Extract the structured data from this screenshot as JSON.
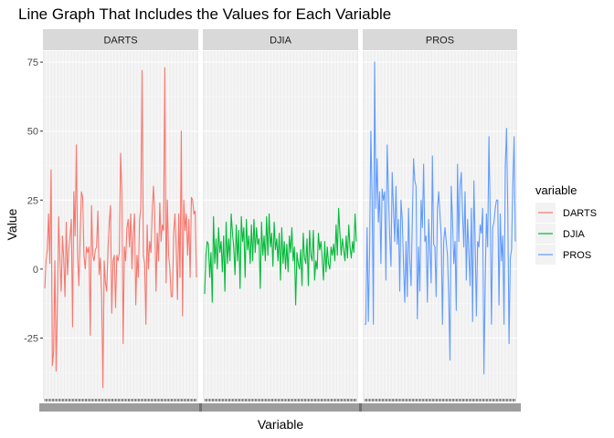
{
  "chart_data": {
    "type": "line",
    "title": "Line Graph That Includes the Values for Each Variable",
    "xlabel": "Variable",
    "ylabel": "Value",
    "ylim": [
      -47,
      79
    ],
    "yticks": [
      -25,
      0,
      25,
      50,
      75
    ],
    "ytick_labels": [
      "-25",
      "0",
      "25",
      "50",
      "75"
    ],
    "legend": {
      "title": "variable",
      "position": "right"
    },
    "grid": true,
    "series": [
      {
        "name": "DARTS",
        "color": "#F8766D",
        "values": [
          -7,
          3,
          7,
          20,
          2,
          36,
          -35,
          -30,
          3,
          -37,
          -13,
          19,
          3,
          -8,
          12,
          4,
          -10,
          17,
          -2,
          7,
          12,
          18,
          -21,
          28,
          12,
          45,
          5,
          -6,
          12,
          28,
          26,
          5,
          0,
          8,
          6,
          8,
          -24,
          23,
          5,
          3,
          7,
          8,
          21,
          -2,
          4,
          -10,
          -43,
          3,
          -5,
          -8,
          7,
          17,
          23,
          -16,
          3,
          5,
          -14,
          5,
          3,
          6,
          42,
          28,
          -27,
          8,
          3,
          15,
          18,
          8,
          20,
          0,
          13,
          20,
          -13,
          5,
          -3,
          18,
          22,
          72,
          5,
          2,
          -20,
          16,
          0,
          10,
          6,
          21,
          30,
          20,
          -8,
          13,
          3,
          24,
          10,
          16,
          14,
          73,
          -5,
          25,
          5,
          0,
          -10,
          -10,
          13,
          20,
          8,
          -11,
          20,
          -3,
          50,
          -17,
          25,
          14,
          20,
          5,
          18,
          -3,
          26,
          25,
          20,
          21,
          -3
        ]
      },
      {
        "name": "DJIA",
        "color": "#00BA38",
        "values": [
          -9,
          5,
          10,
          9,
          -3,
          6,
          -12,
          19,
          2,
          11,
          0,
          15,
          6,
          10,
          -1,
          12,
          -8,
          17,
          2,
          11,
          3,
          20,
          13,
          8,
          -2,
          16,
          3,
          14,
          -7,
          19,
          10,
          15,
          -3,
          18,
          7,
          12,
          2,
          16,
          3,
          18,
          6,
          15,
          9,
          11,
          -7,
          17,
          5,
          12,
          3,
          19,
          5,
          20,
          8,
          13,
          1,
          17,
          7,
          11,
          3,
          13,
          -4,
          15,
          2,
          10,
          0,
          9,
          -1,
          12,
          6,
          15,
          3,
          8,
          -13,
          6,
          2,
          0,
          7,
          -6,
          13,
          4,
          2,
          11,
          -6,
          14,
          5,
          3,
          14,
          -4,
          3,
          0,
          13,
          7,
          10,
          4,
          -4,
          10,
          -1,
          8,
          2,
          0,
          8,
          5,
          9,
          3,
          16,
          5,
          22,
          13,
          5,
          11,
          7,
          3,
          12,
          4,
          16,
          8,
          4,
          10,
          6,
          20,
          10
        ]
      },
      {
        "name": "PROS",
        "color": "#619CFF",
        "values": [
          -20,
          -20,
          15,
          -19,
          6,
          50,
          26,
          -20,
          75,
          22,
          40,
          17,
          28,
          2,
          29,
          25,
          28,
          -4,
          45,
          28,
          12,
          1,
          35,
          22,
          10,
          30,
          9,
          18,
          -8,
          25,
          18,
          2,
          -12,
          10,
          -10,
          22,
          3,
          -6,
          17,
          40,
          32,
          30,
          -18,
          8,
          -8,
          25,
          15,
          38,
          10,
          12,
          -12,
          18,
          7,
          -5,
          41,
          9,
          8,
          -10,
          22,
          28,
          20,
          12,
          -20,
          10,
          15,
          10,
          5,
          -10,
          -33,
          30,
          18,
          2,
          10,
          -15,
          38,
          10,
          30,
          35,
          20,
          8,
          28,
          -4,
          18,
          6,
          -6,
          22,
          -19,
          32,
          10,
          -17,
          10,
          8,
          16,
          13,
          22,
          -38,
          -5,
          20,
          8,
          48,
          20,
          -20,
          15,
          17,
          22,
          25,
          25,
          -13,
          20,
          3,
          12,
          -20,
          37,
          51,
          20,
          -27,
          4,
          7,
          30,
          48,
          10
        ]
      }
    ]
  }
}
